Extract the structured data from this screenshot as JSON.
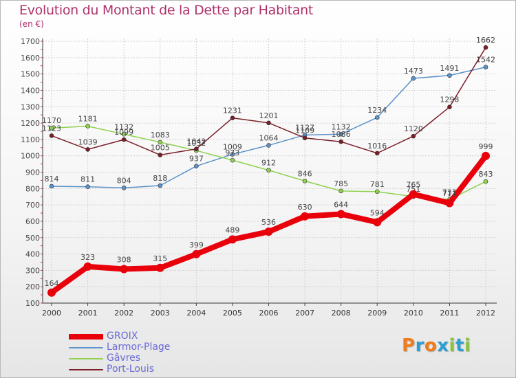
{
  "header": {
    "title": "Evolution du Montant de la Dette par Habitant",
    "subtitle": "(en €)"
  },
  "brand": {
    "letters": [
      {
        "char": "P",
        "color": "#f07c1c"
      },
      {
        "char": "r",
        "color": "#2a9fd6"
      },
      {
        "char": "o",
        "color": "#f07c1c"
      },
      {
        "char": "x",
        "color": "#2a9fd6"
      },
      {
        "char": "i",
        "color": "#8ac43f"
      },
      {
        "char": "t",
        "color": "#2a9fd6"
      },
      {
        "char": "i",
        "color": "#8ac43f"
      }
    ]
  },
  "chart_data": {
    "type": "line",
    "title": "Evolution du Montant de la Dette par Habitant",
    "subtitle": "(en €)",
    "xlabel": "",
    "ylabel": "",
    "x": [
      "2000",
      "2001",
      "2002",
      "2003",
      "2004",
      "2005",
      "2006",
      "2007",
      "2008",
      "2009",
      "2010",
      "2011",
      "2012"
    ],
    "ylim": [
      100,
      1700
    ],
    "yticks": [
      100,
      200,
      300,
      400,
      500,
      600,
      700,
      800,
      900,
      1000,
      1100,
      1200,
      1300,
      1400,
      1500,
      1600,
      1700
    ],
    "grid": true,
    "legend_position": "bottom-left",
    "series": [
      {
        "name": "GROIX",
        "color": "#e8000b",
        "emphasis": true,
        "values": [
          164,
          323,
          308,
          315,
          399,
          489,
          536,
          630,
          644,
          594,
          765,
          711,
          999
        ]
      },
      {
        "name": "Larmor-Plage",
        "color": "#5b92c9",
        "emphasis": false,
        "values": [
          814,
          811,
          804,
          818,
          937,
          1009,
          1064,
          1127,
          1132,
          1234,
          1473,
          1491,
          1542
        ]
      },
      {
        "name": "Gâvres",
        "color": "#8fd14f",
        "emphasis": false,
        "values": [
          1170,
          1181,
          1132,
          1083,
          1032,
          973,
          912,
          846,
          785,
          781,
          751,
          733,
          843
        ]
      },
      {
        "name": "Port-Louis",
        "color": "#7a1e28",
        "emphasis": false,
        "values": [
          1123,
          1039,
          1099,
          1005,
          1042,
          1231,
          1201,
          1109,
          1086,
          1016,
          1120,
          1298,
          1662
        ]
      }
    ]
  }
}
